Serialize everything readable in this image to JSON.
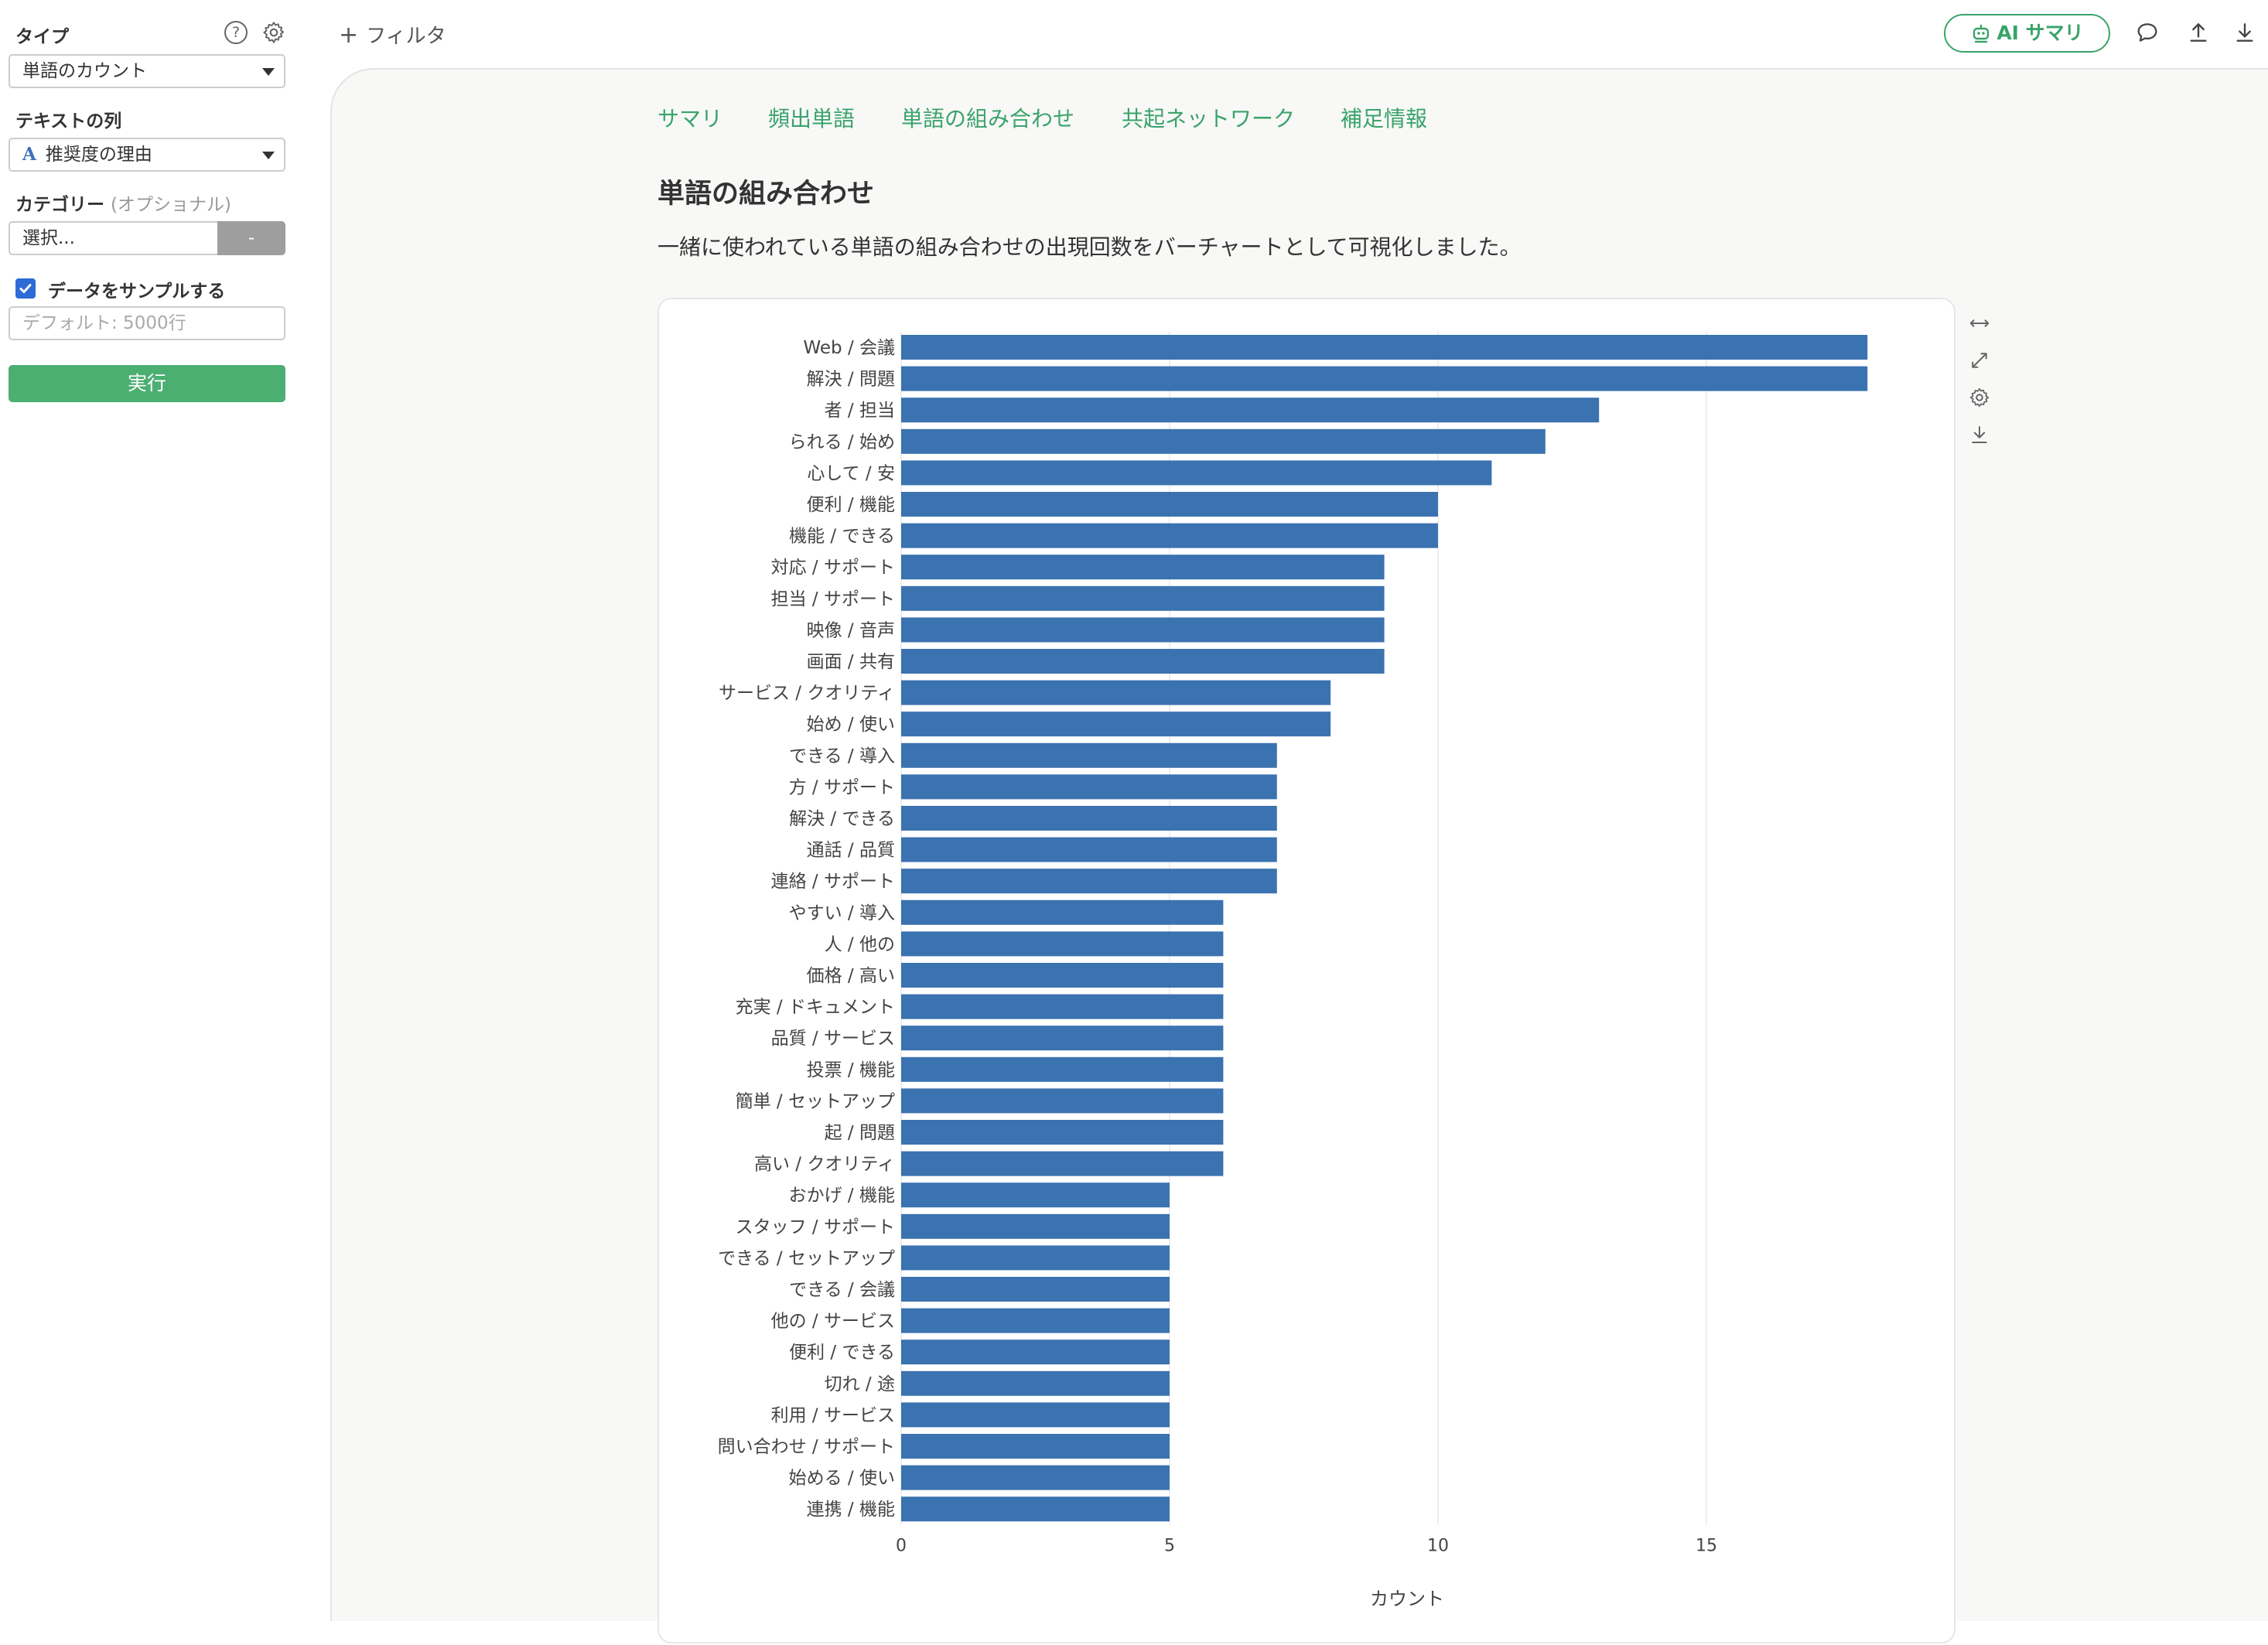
{
  "left_panel": {
    "type_label": "タイプ",
    "type_value": "単語のカウント",
    "text_column_label": "テキストの列",
    "text_column_value": "推奨度の理由",
    "text_column_type_glyph": "A",
    "category_label": "カテゴリー",
    "category_optional": "(オプショナル)",
    "category_placeholder": "選択...",
    "category_clear": "-",
    "sample_label": "データをサンプルする",
    "sample_checked": true,
    "sample_placeholder": "デフォルト: 5000行",
    "run_label": "実行",
    "help_glyph": "?"
  },
  "topbar": {
    "add_filter_label": "フィルタ",
    "ai_summary_label": "AI サマリ"
  },
  "tabs": [
    "サマリ",
    "頻出単語",
    "単語の組み合わせ",
    "共起ネットワーク",
    "補足情報"
  ],
  "section": {
    "title": "単語の組み合わせ",
    "description": "一緒に使われている単語の組み合わせの出現回数をバーチャートとして可視化しました。"
  },
  "colors": {
    "accent_green": "#3aa36a",
    "run_button": "#4caf72",
    "bar": "#3b72b0"
  },
  "chart_data": {
    "type": "bar",
    "orientation": "horizontal",
    "xlabel": "カウント",
    "xlim": [
      0,
      19
    ],
    "xticks": [
      0,
      5,
      10,
      15
    ],
    "grid": true,
    "categories": [
      "Web / 会議",
      "解決 / 問題",
      "者 / 担当",
      "られる / 始め",
      "心して / 安",
      "便利 / 機能",
      "機能 / できる",
      "対応 / サポート",
      "担当 / サポート",
      "映像 / 音声",
      "画面 / 共有",
      "サービス / クオリティ",
      "始め / 使い",
      "できる / 導入",
      "方 / サポート",
      "解決 / できる",
      "通話 / 品質",
      "連絡 / サポート",
      "やすい / 導入",
      "人 / 他の",
      "価格 / 高い",
      "充実 / ドキュメント",
      "品質 / サービス",
      "投票 / 機能",
      "簡単 / セットアップ",
      "起 / 問題",
      "高い / クオリティ",
      "おかげ / 機能",
      "スタッフ / サポート",
      "できる / セットアップ",
      "できる / 会議",
      "他の / サービス",
      "便利 / できる",
      "切れ / 途",
      "利用 / サービス",
      "問い合わせ / サポート",
      "始める / 使い",
      "連携 / 機能"
    ],
    "values": [
      18,
      18,
      13,
      12,
      11,
      10,
      10,
      9,
      9,
      9,
      9,
      8,
      8,
      7,
      7,
      7,
      7,
      7,
      6,
      6,
      6,
      6,
      6,
      6,
      6,
      6,
      6,
      5,
      5,
      5,
      5,
      5,
      5,
      5,
      5,
      5,
      5,
      5
    ]
  }
}
